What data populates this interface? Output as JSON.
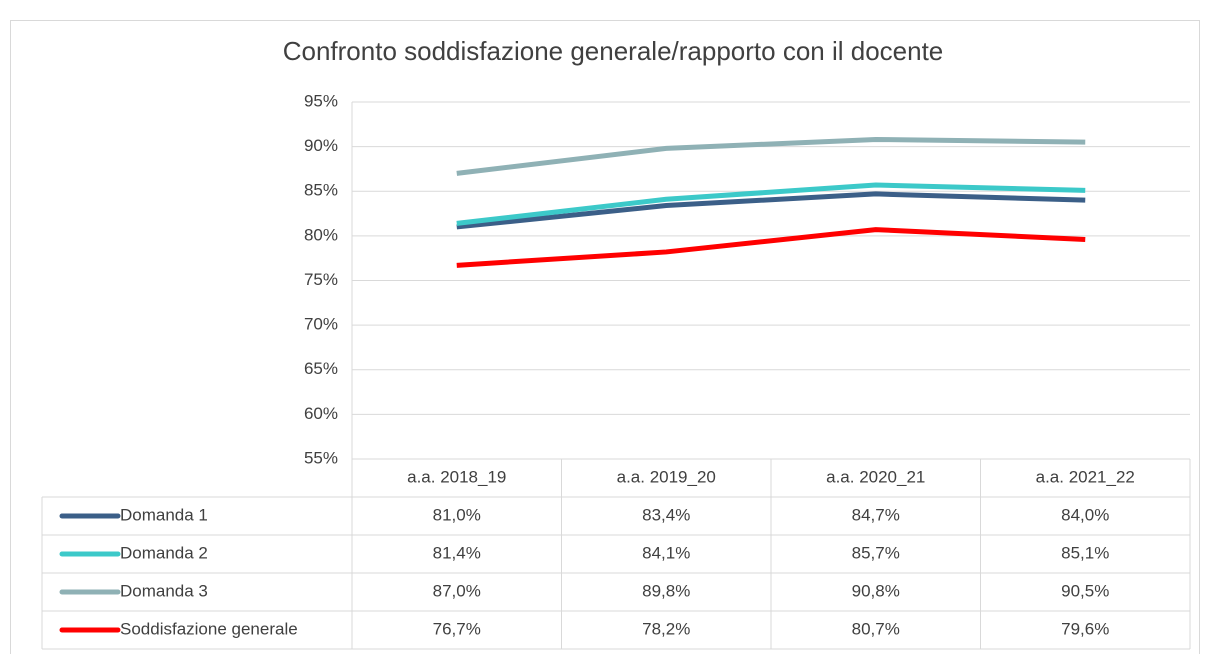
{
  "chart_data": {
    "type": "line",
    "title": "Confronto soddisfazione generale/rapporto con il docente",
    "categories": [
      "a.a. 2018_19",
      "a.a. 2019_20",
      "a.a. 2020_21",
      "a.a. 2021_22"
    ],
    "series": [
      {
        "name": "Domanda 1",
        "color": "#3b5f88",
        "values": [
          81.0,
          83.4,
          84.7,
          84.0
        ],
        "value_labels": [
          "81,0%",
          "83,4%",
          "84,7%",
          "84,0%"
        ]
      },
      {
        "name": "Domanda 2",
        "color": "#3cc9c9",
        "values": [
          81.4,
          84.1,
          85.7,
          85.1
        ],
        "value_labels": [
          "81,4%",
          "84,1%",
          "85,7%",
          "85,1%"
        ]
      },
      {
        "name": "Domanda 3",
        "color": "#8fb1b5",
        "values": [
          87.0,
          89.8,
          90.8,
          90.5
        ],
        "value_labels": [
          "87,0%",
          "89,8%",
          "90,8%",
          "90,5%"
        ]
      },
      {
        "name": "Soddisfazione generale",
        "color": "#ff0000",
        "values": [
          76.7,
          78.2,
          80.7,
          79.6
        ],
        "value_labels": [
          "76,7%",
          "78,2%",
          "80,7%",
          "79,6%"
        ]
      }
    ],
    "ylim": [
      55,
      95
    ],
    "yticks": [
      {
        "value": 55,
        "label": "55%"
      },
      {
        "value": 60,
        "label": "60%"
      },
      {
        "value": 65,
        "label": "65%"
      },
      {
        "value": 70,
        "label": "70%"
      },
      {
        "value": 75,
        "label": "75%"
      },
      {
        "value": 80,
        "label": "80%"
      },
      {
        "value": 85,
        "label": "85%"
      },
      {
        "value": 90,
        "label": "90%"
      },
      {
        "value": 95,
        "label": "95%"
      }
    ],
    "grid": true
  }
}
